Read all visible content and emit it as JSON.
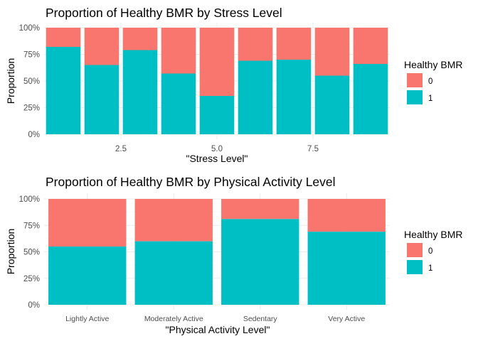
{
  "colors": {
    "0": "#F8766D",
    "1": "#00BFC4"
  },
  "chart_data": [
    {
      "type": "bar",
      "stacked": "proportion",
      "title": "Proportion of Healthy BMR by Stress Level",
      "xlabel": "\"Stress Level\"",
      "ylabel": "Proportion",
      "x": [
        1,
        2,
        3,
        4,
        5,
        6,
        7,
        8,
        9
      ],
      "xticks": [
        2.5,
        5.0,
        7.5
      ],
      "xtick_labels": [
        "2.5",
        "5.0",
        "7.5"
      ],
      "xlim": [
        0.5,
        9.5
      ],
      "ylim": [
        0,
        1
      ],
      "yticks": [
        "0%",
        "25%",
        "50%",
        "75%",
        "100%"
      ],
      "series": [
        {
          "name": "1",
          "values": [
            0.82,
            0.65,
            0.79,
            0.57,
            0.36,
            0.69,
            0.7,
            0.55,
            0.66
          ]
        },
        {
          "name": "0",
          "values": [
            0.18,
            0.35,
            0.21,
            0.43,
            0.64,
            0.31,
            0.3,
            0.45,
            0.34
          ]
        }
      ],
      "legend": {
        "title": "Healthy BMR",
        "entries": [
          "0",
          "1"
        ],
        "position": "right"
      },
      "grid": true
    },
    {
      "type": "bar",
      "stacked": "proportion",
      "title": "Proportion of Healthy BMR by Physical Activity Level",
      "xlabel": "\"Physical Activity Level\"",
      "ylabel": "Proportion",
      "categories": [
        "Lightly Active",
        "Moderately Active",
        "Sedentary",
        "Very Active"
      ],
      "ylim": [
        0,
        1
      ],
      "yticks": [
        "0%",
        "25%",
        "50%",
        "75%",
        "100%"
      ],
      "series": [
        {
          "name": "1",
          "values": [
            0.55,
            0.6,
            0.81,
            0.69
          ]
        },
        {
          "name": "0",
          "values": [
            0.45,
            0.4,
            0.19,
            0.31
          ]
        }
      ],
      "legend": {
        "title": "Healthy BMR",
        "entries": [
          "0",
          "1"
        ],
        "position": "right"
      },
      "grid": true
    }
  ]
}
